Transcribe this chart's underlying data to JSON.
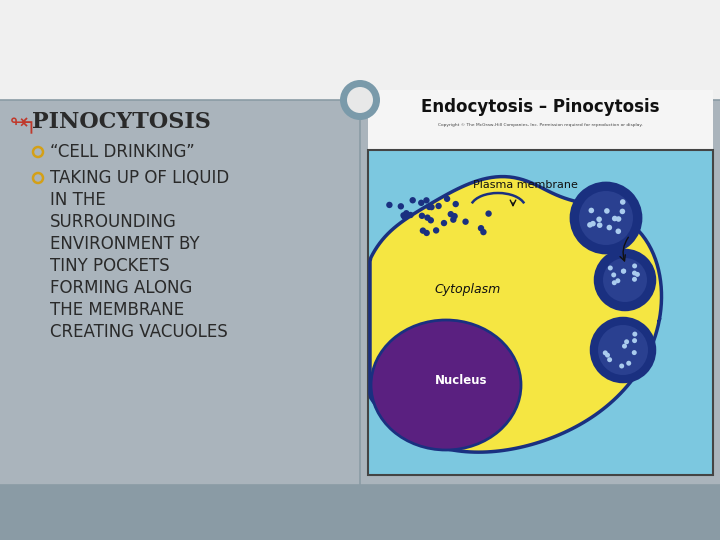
{
  "bg_top_white": "#ffffff",
  "bg_main": "#aab4bc",
  "bg_bottom": "#8a9ba5",
  "title_text": "PINOCYTOSIS",
  "title_color": "#2a2a2a",
  "title_bullet_color": "#c0392b",
  "bullet1_text": "“CELL DRINKING”",
  "bullet2_lines": [
    "TAKING UP OF LIQUID",
    "IN THE",
    "SURROUNDING",
    "ENVIRONMENT BY",
    "TINY POCKETS",
    "FORMING ALONG",
    "THE MEMBRANE",
    "CREATING VACUOLES"
  ],
  "bullet_color": "#2a2a2a",
  "sub_bullet_marker_color": "#d4a017",
  "image_title": "Endocytosis – Pinocytosis",
  "top_bar_color": "#f0f0f0",
  "divider_line_color": "#8a9ba5",
  "circle_stroke": "#7a9aaa",
  "circle_fill": "#e8e8e8",
  "bottom_bar_color": "#8a9ba5",
  "cell_yellow": "#f5e642",
  "cell_outline": "#1a3080",
  "nucleus_fill": "#5a2080",
  "nucleus_outline": "#1a3080",
  "vesicle_fill": "#1a3080",
  "vesicle_inner": "#2a4090",
  "vesicle_dot": "#aaccee",
  "bg_cell": "#7cc8e0",
  "copyright_text": "Copyright © The McGraw-Hill Companies, Inc. Permission required for reproduction or display."
}
